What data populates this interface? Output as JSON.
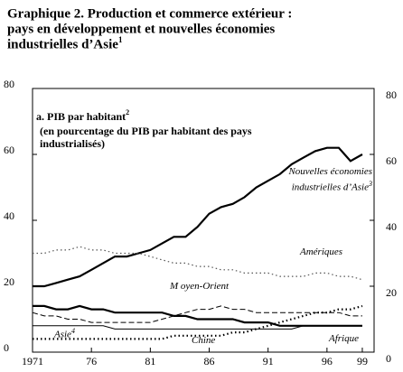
{
  "chart_data": {
    "type": "line",
    "title_lines": [
      "Graphique 2.  Production et commerce extérieur :",
      "pays en développement et nouvelles économies",
      "industrielles d’Asie"
    ],
    "title_note": "1",
    "panel_title": "a. PIB  par habitant",
    "panel_note": "2",
    "panel_subtitle_lines": [
      "(en pourcentage du PIB par habitant des pays",
      "industrialisés)"
    ],
    "x": [
      1971,
      1972,
      1973,
      1974,
      1975,
      1976,
      1977,
      1978,
      1979,
      1980,
      1981,
      1982,
      1983,
      1984,
      1985,
      1986,
      1987,
      1988,
      1989,
      1990,
      1991,
      1992,
      1993,
      1994,
      1995,
      1996,
      1997,
      1998,
      1999
    ],
    "xlim": [
      1971,
      2000
    ],
    "xticks": [
      1971,
      {
        "value": 1976,
        "label": "76"
      },
      {
        "value": 1981,
        "label": "81"
      },
      {
        "value": 1986,
        "label": "86"
      },
      {
        "value": 1991,
        "label": "91"
      },
      {
        "value": 1996,
        "label": "96"
      },
      {
        "value": 1999,
        "label": "99"
      }
    ],
    "ylim": [
      0,
      80
    ],
    "yticks": [
      0,
      20,
      40,
      60,
      80
    ],
    "y2lim": [
      0,
      80
    ],
    "y2ticks": [
      0,
      20,
      40,
      60,
      80
    ],
    "series": [
      {
        "name": "Nouvelles économies industrielles d’Asie",
        "note": "3",
        "color": "#000000",
        "dash": "solid",
        "width": 2.2,
        "values": [
          20,
          20,
          21,
          22,
          23,
          25,
          27,
          29,
          29,
          30,
          31,
          33,
          35,
          35,
          38,
          42,
          44,
          45,
          47,
          50,
          52,
          54,
          57,
          59,
          61,
          62,
          62,
          58,
          60
        ]
      },
      {
        "name": "Amériques",
        "color": "#555555",
        "dash": "dotted",
        "width": 1.2,
        "values": [
          30,
          30,
          31,
          31,
          32,
          31,
          31,
          30,
          30,
          30,
          29,
          28,
          27,
          27,
          26,
          26,
          25,
          25,
          24,
          24,
          24,
          23,
          23,
          23,
          24,
          24,
          23,
          23,
          22
        ]
      },
      {
        "name": "M oyen-Orient",
        "color": "#000000",
        "dash": "dashed",
        "width": 1,
        "values": [
          12,
          11,
          11,
          10,
          10,
          9,
          9,
          9,
          9,
          9,
          9,
          10,
          11,
          12,
          13,
          13,
          14,
          13,
          13,
          12,
          12,
          12,
          12,
          12,
          12,
          12,
          12,
          11,
          11
        ]
      },
      {
        "name": "Afrique",
        "color": "#000000",
        "dash": "solid",
        "width": 2.2,
        "values": [
          14,
          14,
          13,
          13,
          14,
          13,
          13,
          12,
          12,
          12,
          12,
          12,
          11,
          11,
          10,
          10,
          10,
          10,
          9,
          9,
          9,
          8,
          8,
          8,
          8,
          8,
          8,
          8,
          8
        ]
      },
      {
        "name": "Asie",
        "note": "4",
        "color": "#000000",
        "dash": "solid",
        "width": 1,
        "values": [
          8,
          8,
          8,
          8,
          8,
          8,
          8,
          7,
          7,
          7,
          7,
          7,
          7,
          7,
          7,
          7,
          7,
          7,
          7,
          7,
          7,
          7,
          7,
          8,
          8,
          8,
          8,
          8,
          8
        ]
      },
      {
        "name": "Chine",
        "color": "#000000",
        "dash": "dotted",
        "width": 2.2,
        "values": [
          4,
          4,
          4,
          4,
          4,
          4,
          4,
          4,
          4,
          4,
          4,
          4,
          5,
          5,
          5,
          5,
          5,
          6,
          6,
          7,
          8,
          9,
          10,
          11,
          12,
          12,
          13,
          13,
          14
        ]
      }
    ]
  }
}
